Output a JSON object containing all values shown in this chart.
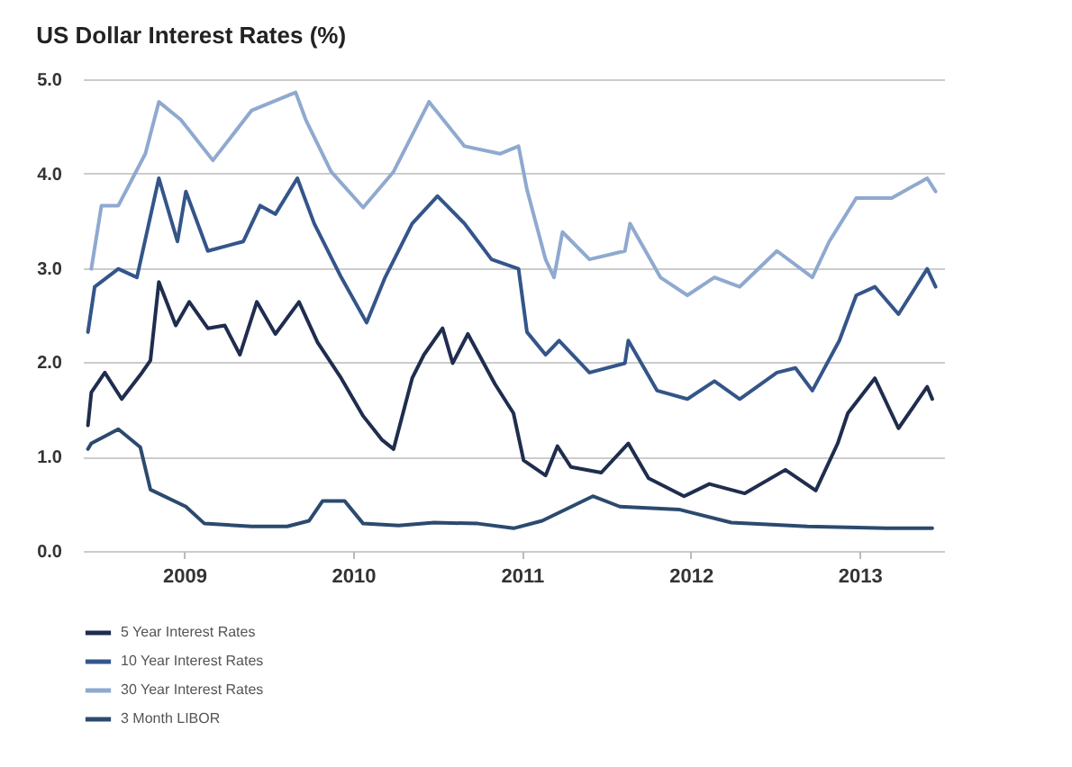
{
  "chart_data": {
    "type": "line",
    "title": "US Dollar Interest Rates (%)",
    "xlim": [
      2008.4,
      2013.5
    ],
    "xticks": [
      {
        "value": 2009,
        "label": "2009"
      },
      {
        "value": 2010,
        "label": "2010"
      },
      {
        "value": 2011,
        "label": "2011"
      },
      {
        "value": 2012,
        "label": "2012"
      },
      {
        "value": 2013,
        "label": "2013"
      }
    ],
    "ylim": [
      0,
      5
    ],
    "yticks": [
      {
        "value": 0,
        "label": "0.0"
      },
      {
        "value": 1,
        "label": "1.0"
      },
      {
        "value": 2,
        "label": "2.0"
      },
      {
        "value": 3,
        "label": "3.0"
      },
      {
        "value": 4,
        "label": "4.0"
      },
      {
        "value": 5,
        "label": "5.0"
      }
    ],
    "grid": "y",
    "legend": "bottom",
    "marker": "none",
    "line_style": "solid",
    "series": [
      {
        "name": "5 Year Interest Rates",
        "color": "#1f2d4e",
        "x": [
          2008.43,
          2008.45,
          2008.53,
          2008.63,
          2008.75,
          2008.8,
          2008.85,
          2008.95,
          2009.03,
          2009.14,
          2009.24,
          2009.33,
          2009.43,
          2009.54,
          2009.68,
          2009.79,
          2009.93,
          2010.06,
          2010.17,
          2010.24,
          2010.35,
          2010.42,
          2010.53,
          2010.59,
          2010.68,
          2010.84,
          2010.95,
          2011.01,
          2011.14,
          2011.21,
          2011.29,
          2011.47,
          2011.63,
          2011.75,
          2011.96,
          2012.11,
          2012.32,
          2012.56,
          2012.74,
          2012.87,
          2012.93,
          2013.09,
          2013.23,
          2013.4,
          2013.43
        ],
        "values": [
          1.33,
          1.68,
          1.89,
          1.61,
          1.89,
          2.02,
          2.85,
          2.39,
          2.64,
          2.36,
          2.39,
          2.08,
          2.64,
          2.3,
          2.64,
          2.21,
          1.83,
          1.43,
          1.18,
          1.08,
          1.83,
          2.08,
          2.36,
          1.99,
          2.3,
          1.77,
          1.46,
          0.96,
          0.8,
          1.11,
          0.89,
          0.83,
          1.14,
          0.77,
          0.58,
          0.71,
          0.61,
          0.86,
          0.64,
          1.14,
          1.46,
          1.83,
          1.3,
          1.74,
          1.61
        ]
      },
      {
        "name": "10 Year Interest Rates",
        "color": "#34558a",
        "x": [
          2008.43,
          2008.47,
          2008.61,
          2008.72,
          2008.85,
          2008.96,
          2009.01,
          2009.14,
          2009.35,
          2009.45,
          2009.54,
          2009.67,
          2009.77,
          2009.93,
          2010.08,
          2010.19,
          2010.35,
          2010.5,
          2010.66,
          2010.82,
          2010.98,
          2011.03,
          2011.14,
          2011.22,
          2011.4,
          2011.61,
          2011.63,
          2011.8,
          2011.98,
          2012.14,
          2012.29,
          2012.51,
          2012.62,
          2012.72,
          2012.88,
          2012.98,
          2013.09,
          2013.23,
          2013.4,
          2013.45
        ],
        "values": [
          2.32,
          2.8,
          2.99,
          2.9,
          3.95,
          3.28,
          3.81,
          3.18,
          3.28,
          3.66,
          3.57,
          3.95,
          3.47,
          2.9,
          2.42,
          2.9,
          3.47,
          3.76,
          3.47,
          3.09,
          2.99,
          2.32,
          2.08,
          2.23,
          1.89,
          1.99,
          2.23,
          1.7,
          1.61,
          1.8,
          1.61,
          1.89,
          1.94,
          1.7,
          2.23,
          2.71,
          2.8,
          2.51,
          2.99,
          2.8
        ]
      },
      {
        "name": "30 Year Interest Rates",
        "color": "#8fa9cf",
        "x": [
          2008.45,
          2008.51,
          2008.61,
          2008.77,
          2008.85,
          2008.98,
          2009.17,
          2009.4,
          2009.66,
          2009.72,
          2009.87,
          2010.06,
          2010.24,
          2010.45,
          2010.66,
          2010.87,
          2010.98,
          2011.03,
          2011.14,
          2011.19,
          2011.24,
          2011.4,
          2011.61,
          2011.64,
          2011.82,
          2011.98,
          2012.14,
          2012.29,
          2012.51,
          2012.72,
          2012.82,
          2012.98,
          2013.19,
          2013.4,
          2013.45
        ],
        "values": [
          2.99,
          3.66,
          3.66,
          4.21,
          4.76,
          4.57,
          4.14,
          4.67,
          4.86,
          4.57,
          4.02,
          3.64,
          4.02,
          4.76,
          4.29,
          4.21,
          4.29,
          3.83,
          3.09,
          2.9,
          3.38,
          3.09,
          3.18,
          3.47,
          2.9,
          2.71,
          2.9,
          2.8,
          3.18,
          2.9,
          3.28,
          3.74,
          3.74,
          3.95,
          3.81
        ]
      },
      {
        "name": "3 Month LIBOR",
        "color": "#2b4a6e",
        "x": [
          2008.43,
          2008.45,
          2008.61,
          2008.74,
          2008.8,
          2009.01,
          2009.12,
          2009.4,
          2009.61,
          2009.74,
          2009.82,
          2009.95,
          2010.06,
          2010.27,
          2010.48,
          2010.74,
          2010.95,
          2011.12,
          2011.42,
          2011.58,
          2011.93,
          2012.24,
          2012.69,
          2013.16,
          2013.43
        ],
        "values": [
          1.08,
          1.14,
          1.29,
          1.1,
          0.65,
          0.47,
          0.29,
          0.26,
          0.26,
          0.32,
          0.53,
          0.53,
          0.29,
          0.27,
          0.3,
          0.29,
          0.24,
          0.32,
          0.58,
          0.47,
          0.44,
          0.3,
          0.26,
          0.24,
          0.24
        ]
      }
    ]
  }
}
